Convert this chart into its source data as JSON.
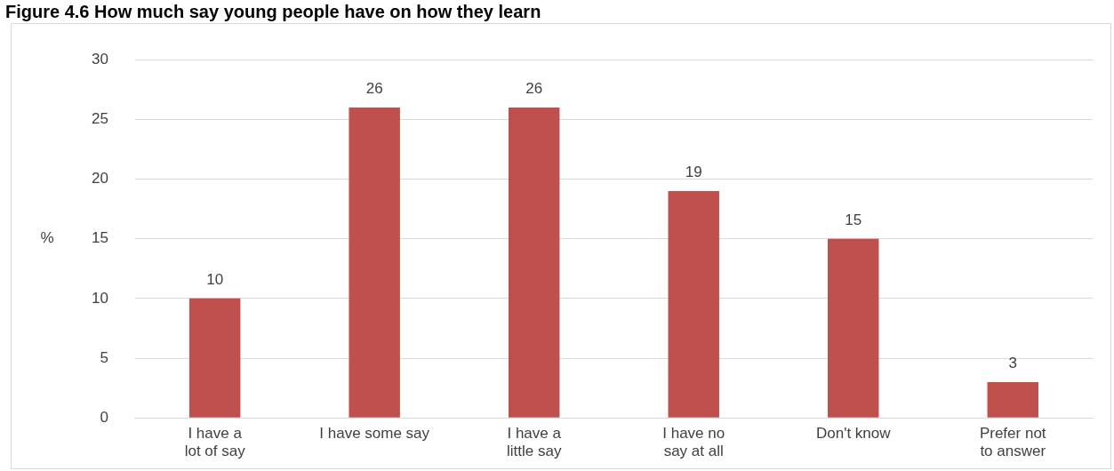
{
  "chart_data": {
    "type": "bar",
    "title": "Figure 4.6 How much say young people have on how they learn",
    "ylabel": "%",
    "categories": [
      "I have a lot of say",
      "I have some say",
      "I have a little say",
      "I have no say at all",
      "Don't know",
      "Prefer not to answer"
    ],
    "values": [
      10,
      26,
      26,
      19,
      15,
      3
    ],
    "color": "#c0504d",
    "ylim": [
      0,
      30
    ],
    "yticks": [
      0,
      5,
      10,
      15,
      20,
      25,
      30
    ],
    "grid": "y",
    "data_labels": true,
    "legend": false
  }
}
